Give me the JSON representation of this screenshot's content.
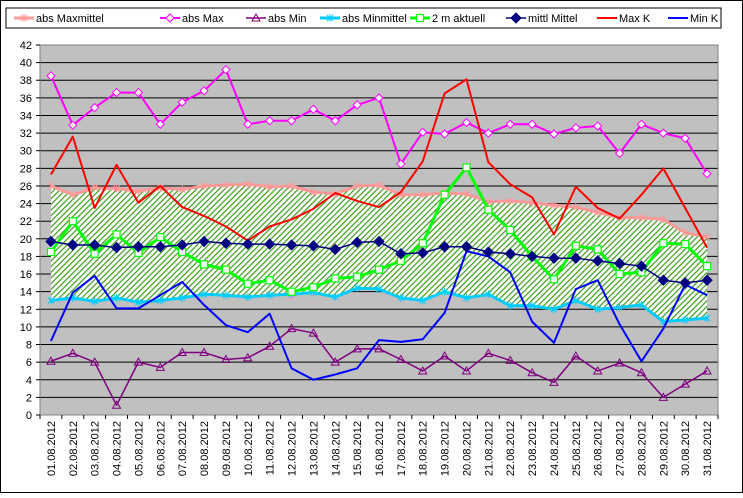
{
  "chart_data": {
    "type": "line",
    "title": "",
    "xlabel": "",
    "ylabel": "",
    "ylim": [
      0,
      42
    ],
    "y_ticks": [
      0,
      2,
      4,
      6,
      8,
      10,
      12,
      14,
      16,
      18,
      20,
      22,
      24,
      26,
      28,
      30,
      32,
      34,
      36,
      38,
      40,
      42
    ],
    "grid": "horizontal",
    "legend_position": "top",
    "plot_background": "#c0c0c0",
    "categories": [
      "01.08.2012",
      "02.08.2012",
      "03.08.2012",
      "04.08.2012",
      "05.08.2012",
      "06.08.2012",
      "07.08.2012",
      "08.08.2012",
      "09.08.2012",
      "10.08.2012",
      "11.08.2012",
      "12.08.2012",
      "13.08.2012",
      "14.08.2012",
      "15.08.2012",
      "16.08.2012",
      "17.08.2012",
      "18.08.2012",
      "19.08.2012",
      "20.08.2012",
      "21.08.2012",
      "22.08.2012",
      "23.08.2012",
      "24.08.2012",
      "25.08.2012",
      "26.08.2012",
      "27.08.2012",
      "28.08.2012",
      "29.08.2012",
      "30.08.2012",
      "31.08.2012"
    ],
    "band": {
      "from_series": "abs Minmittel",
      "to_series": "abs Maxmittel",
      "fill": "hatched-green"
    },
    "series": [
      {
        "name": "abs Maxmittel",
        "color": "#ff9999",
        "marker": "asterisk",
        "values": [
          26.0,
          25.0,
          25.8,
          25.7,
          25.4,
          25.8,
          25.6,
          26.0,
          26.1,
          26.2,
          25.9,
          26.0,
          25.3,
          25.1,
          26.0,
          26.1,
          25.0,
          25.0,
          25.2,
          25.1,
          24.2,
          24.3,
          24.1,
          23.8,
          23.6,
          23.0,
          22.4,
          22.4,
          22.2,
          20.7,
          20.2
        ]
      },
      {
        "name": "abs Max",
        "color": "#ff00ff",
        "marker": "diamond-open",
        "values": [
          38.5,
          32.9,
          34.9,
          36.6,
          36.6,
          33.0,
          35.5,
          36.8,
          39.2,
          33.0,
          33.4,
          33.4,
          34.7,
          33.4,
          35.2,
          36.0,
          28.5,
          32.1,
          31.9,
          33.2,
          32.0,
          33.0,
          33.0,
          31.9,
          32.6,
          32.8,
          29.7,
          33.0,
          32.0,
          31.4,
          27.4
        ]
      },
      {
        "name": "abs Min",
        "color": "#800080",
        "marker": "triangle-open",
        "values": [
          6.1,
          7.0,
          6.0,
          1.1,
          6.0,
          5.4,
          7.1,
          7.1,
          6.3,
          6.5,
          7.8,
          9.8,
          9.3,
          6.0,
          7.5,
          7.5,
          6.3,
          5.0,
          6.7,
          5.0,
          7.0,
          6.2,
          4.8,
          3.7,
          6.7,
          5.0,
          5.9,
          4.8,
          2.0,
          3.5,
          5.0
        ]
      },
      {
        "name": "abs Minmittel",
        "color": "#00ccff",
        "marker": "asterisk",
        "values": [
          13.0,
          13.3,
          12.9,
          13.3,
          12.8,
          13.0,
          13.3,
          13.7,
          13.6,
          13.4,
          13.6,
          13.7,
          13.9,
          13.4,
          14.4,
          14.3,
          13.3,
          13.0,
          14.0,
          13.3,
          13.7,
          12.4,
          12.4,
          12.0,
          13.0,
          12.0,
          12.2,
          12.5,
          10.6,
          10.8,
          11.0
        ]
      },
      {
        "name": "2 m aktuell",
        "color": "#00ff00",
        "marker": "square-open",
        "values": [
          18.5,
          22.0,
          18.3,
          20.5,
          18.4,
          20.2,
          18.5,
          17.1,
          16.5,
          14.9,
          15.3,
          14.0,
          14.5,
          15.5,
          15.7,
          16.5,
          17.5,
          19.5,
          25.0,
          28.1,
          23.3,
          21.0,
          18.0,
          15.4,
          19.2,
          18.8,
          16.0,
          16.2,
          19.5,
          19.4,
          16.9
        ]
      },
      {
        "name": "mittl Mittel",
        "color": "#000080",
        "marker": "diamond-filled",
        "values": [
          19.7,
          19.3,
          19.3,
          19.0,
          19.1,
          19.1,
          19.3,
          19.7,
          19.5,
          19.4,
          19.4,
          19.3,
          19.2,
          18.8,
          19.6,
          19.7,
          18.3,
          18.4,
          19.1,
          19.1,
          18.5,
          18.3,
          18.0,
          17.8,
          17.8,
          17.5,
          17.2,
          16.9,
          15.3,
          15.0,
          15.3
        ]
      },
      {
        "name": "Max K",
        "color": "#ff0000",
        "marker": "none",
        "values": [
          27.3,
          31.6,
          23.5,
          28.4,
          24.1,
          26.0,
          23.6,
          22.6,
          21.4,
          19.8,
          21.4,
          22.2,
          23.4,
          25.2,
          24.3,
          23.6,
          25.3,
          28.8,
          36.5,
          38.1,
          28.7,
          26.2,
          24.7,
          20.5,
          25.9,
          23.5,
          22.3,
          25.0,
          28.0,
          23.5,
          19.0
        ]
      },
      {
        "name": "Min K",
        "color": "#0000ff",
        "marker": "none",
        "values": [
          8.4,
          13.9,
          15.8,
          12.1,
          12.1,
          13.6,
          15.1,
          12.5,
          10.2,
          9.4,
          11.5,
          5.3,
          4.0,
          4.6,
          5.3,
          8.5,
          8.3,
          8.6,
          11.6,
          18.6,
          18.0,
          16.2,
          10.6,
          8.2,
          14.3,
          15.3,
          10.3,
          6.1,
          9.8,
          14.8,
          13.6
        ]
      }
    ]
  }
}
